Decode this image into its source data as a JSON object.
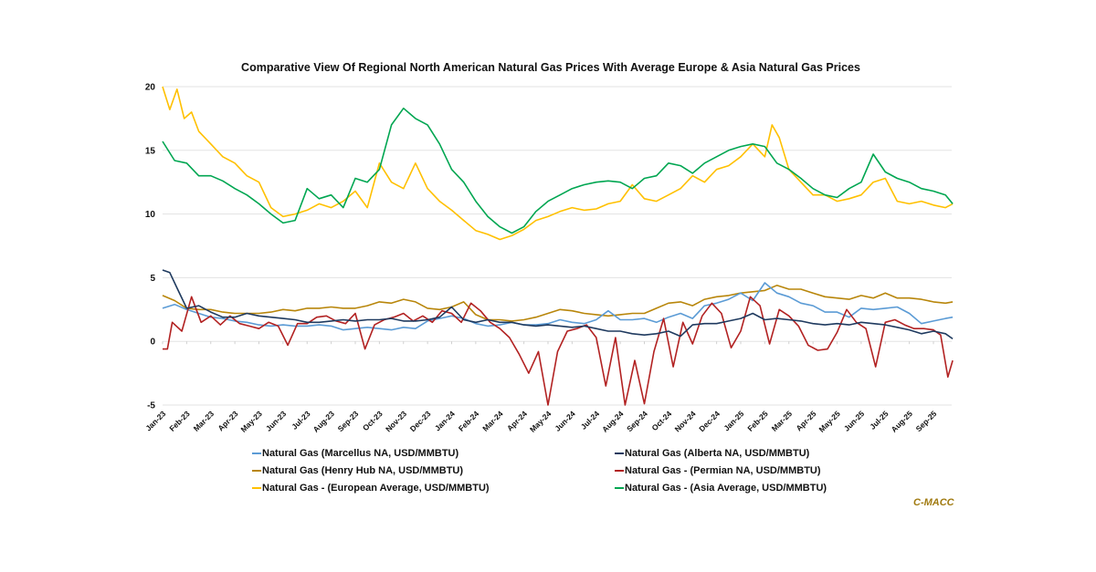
{
  "chart_data": {
    "type": "line",
    "title": "Comparative View Of Regional North American Natural Gas Prices With Average Europe & Asia Natural Gas Prices",
    "xlabel": "",
    "ylabel": "",
    "ylim": [
      -5,
      20
    ],
    "yticks": [
      20,
      15,
      10,
      5,
      0,
      -5
    ],
    "grid": true,
    "legend_position": "bottom",
    "x_tick_labels": [
      "Jan-23",
      "Feb-23",
      "Mar-23",
      "Apr-23",
      "May-23",
      "Jun-23",
      "Jul-23",
      "Aug-23",
      "Sep-23",
      "Oct-23",
      "Nov-23",
      "Dec-23",
      "Jan-24",
      "Feb-24",
      "Mar-24",
      "Apr-24",
      "May-24",
      "Jun-24",
      "Jul-24",
      "Aug-24",
      "Sep-24",
      "Oct-24",
      "Nov-24",
      "Dec-24",
      "Jan-25",
      "Feb-25",
      "Mar-25",
      "Apr-25",
      "May-25",
      "Jun-25",
      "Jul-25",
      "Aug-25",
      "Sep-25"
    ],
    "x_unit": "months since Jan-23",
    "x_range": [
      0,
      32.8
    ],
    "series": [
      {
        "name": "Natural Gas (Marcellus NA, USD/MMBTU)",
        "color": "#5b9bd5",
        "x": [
          0,
          0.5,
          1,
          1.5,
          2,
          2.5,
          3,
          3.5,
          4,
          4.5,
          5,
          5.5,
          6,
          6.5,
          7,
          7.5,
          8,
          8.5,
          9,
          9.5,
          10,
          10.5,
          11,
          11.5,
          12,
          12.5,
          13,
          13.5,
          14,
          14.5,
          15,
          15.5,
          16,
          16.5,
          17,
          17.5,
          18,
          18.5,
          19,
          19.5,
          20,
          20.5,
          21,
          21.5,
          22,
          22.5,
          23,
          23.5,
          24,
          24.5,
          25,
          25.5,
          26,
          26.5,
          27,
          27.5,
          28,
          28.5,
          29,
          29.5,
          30,
          30.5,
          31,
          31.5,
          32,
          32.5,
          32.8
        ],
        "values": [
          2.6,
          2.9,
          2.5,
          2.2,
          1.9,
          1.8,
          1.6,
          1.5,
          1.3,
          1.2,
          1.3,
          1.2,
          1.2,
          1.3,
          1.2,
          0.9,
          1.0,
          1.1,
          1.0,
          0.9,
          1.1,
          1.0,
          1.6,
          1.8,
          2.0,
          1.8,
          1.4,
          1.2,
          1.3,
          1.5,
          1.3,
          1.3,
          1.4,
          1.7,
          1.5,
          1.4,
          1.7,
          2.4,
          1.7,
          1.7,
          1.8,
          1.5,
          1.9,
          2.2,
          1.8,
          2.8,
          3.0,
          3.3,
          3.8,
          3.2,
          4.6,
          3.8,
          3.5,
          3.0,
          2.8,
          2.3,
          2.3,
          1.9,
          2.6,
          2.5,
          2.6,
          2.7,
          2.2,
          1.4,
          1.6,
          1.8,
          1.9
        ]
      },
      {
        "name": "Natural Gas (Alberta NA, USD/MMBTU)",
        "color": "#1f3a5f",
        "x": [
          0,
          0.3,
          0.6,
          1,
          1.5,
          2,
          2.5,
          3,
          3.5,
          4,
          4.5,
          5,
          5.5,
          6,
          6.5,
          7,
          7.5,
          8,
          8.5,
          9,
          9.5,
          10,
          10.5,
          11,
          11.5,
          12,
          12.5,
          13,
          13.5,
          14,
          14.5,
          15,
          15.5,
          16,
          16.5,
          17,
          17.5,
          18,
          18.5,
          19,
          19.5,
          20,
          20.5,
          21,
          21.5,
          22,
          22.5,
          23,
          23.5,
          24,
          24.5,
          25,
          25.5,
          26,
          26.5,
          27,
          27.5,
          28,
          28.5,
          29,
          29.5,
          30,
          30.5,
          31,
          31.5,
          32,
          32.5,
          32.8
        ],
        "values": [
          5.6,
          5.4,
          4.2,
          2.6,
          2.8,
          2.3,
          1.9,
          1.9,
          2.2,
          2.0,
          1.9,
          1.8,
          1.7,
          1.5,
          1.5,
          1.6,
          1.7,
          1.6,
          1.7,
          1.7,
          1.8,
          1.6,
          1.6,
          1.7,
          1.9,
          2.7,
          1.7,
          1.5,
          1.7,
          1.5,
          1.5,
          1.3,
          1.2,
          1.3,
          1.2,
          1.1,
          1.2,
          1.0,
          0.8,
          0.8,
          0.6,
          0.5,
          0.6,
          0.8,
          0.4,
          1.3,
          1.4,
          1.4,
          1.6,
          1.8,
          2.2,
          1.7,
          1.8,
          1.7,
          1.6,
          1.4,
          1.3,
          1.4,
          1.3,
          1.5,
          1.4,
          1.3,
          1.1,
          0.9,
          0.6,
          0.8,
          0.6,
          0.2
        ]
      },
      {
        "name": "Natural Gas (Henry Hub NA, USD/MMBTU)",
        "color": "#b8860b",
        "x": [
          0,
          0.5,
          1,
          1.5,
          2,
          2.5,
          3,
          3.5,
          4,
          4.5,
          5,
          5.5,
          6,
          6.5,
          7,
          7.5,
          8,
          8.5,
          9,
          9.5,
          10,
          10.5,
          11,
          11.5,
          12,
          12.5,
          13,
          13.5,
          14,
          14.5,
          15,
          15.5,
          16,
          16.5,
          17,
          17.5,
          18,
          18.5,
          19,
          19.5,
          20,
          20.5,
          21,
          21.5,
          22,
          22.5,
          23,
          23.5,
          24,
          24.5,
          25,
          25.5,
          26,
          26.5,
          27,
          27.5,
          28,
          28.5,
          29,
          29.5,
          30,
          30.5,
          31,
          31.5,
          32,
          32.5,
          32.8
        ],
        "values": [
          3.6,
          3.2,
          2.6,
          2.5,
          2.5,
          2.3,
          2.2,
          2.2,
          2.2,
          2.3,
          2.5,
          2.4,
          2.6,
          2.6,
          2.7,
          2.6,
          2.6,
          2.8,
          3.1,
          3.0,
          3.3,
          3.1,
          2.6,
          2.5,
          2.7,
          3.1,
          2.1,
          1.7,
          1.7,
          1.6,
          1.7,
          1.9,
          2.2,
          2.5,
          2.4,
          2.2,
          2.1,
          2.0,
          2.1,
          2.2,
          2.2,
          2.6,
          3.0,
          3.1,
          2.8,
          3.3,
          3.5,
          3.6,
          3.8,
          3.9,
          4.0,
          4.4,
          4.1,
          4.1,
          3.8,
          3.5,
          3.4,
          3.3,
          3.6,
          3.4,
          3.8,
          3.4,
          3.4,
          3.3,
          3.1,
          3.0,
          3.1
        ]
      },
      {
        "name": "Natural Gas - (Permian NA, USD/MMBTU)",
        "color": "#b22222",
        "x": [
          0,
          0.2,
          0.4,
          0.8,
          1.2,
          1.6,
          2,
          2.4,
          2.8,
          3.2,
          3.6,
          4,
          4.4,
          4.8,
          5.2,
          5.6,
          6,
          6.4,
          6.8,
          7.2,
          7.6,
          8,
          8.4,
          8.8,
          9.2,
          9.6,
          10,
          10.4,
          10.8,
          11.2,
          11.6,
          12,
          12.4,
          12.8,
          13.2,
          13.6,
          14,
          14.4,
          14.8,
          15.2,
          15.6,
          16,
          16.4,
          16.8,
          17.2,
          17.6,
          18,
          18.4,
          18.8,
          19.2,
          19.6,
          20,
          20.4,
          20.8,
          21.2,
          21.6,
          22,
          22.4,
          22.8,
          23.2,
          23.6,
          24,
          24.4,
          24.8,
          25.2,
          25.6,
          26,
          26.4,
          26.8,
          27.2,
          27.6,
          28,
          28.4,
          28.8,
          29.2,
          29.6,
          30,
          30.4,
          30.8,
          31.2,
          31.6,
          32,
          32.3,
          32.6,
          32.8
        ],
        "values": [
          -0.6,
          -0.6,
          1.5,
          0.8,
          3.5,
          1.5,
          2.0,
          1.3,
          2.0,
          1.4,
          1.2,
          1.0,
          1.5,
          1.2,
          -0.3,
          1.4,
          1.4,
          1.9,
          2.0,
          1.6,
          1.4,
          2.2,
          -0.6,
          1.3,
          1.7,
          1.9,
          2.2,
          1.6,
          2.0,
          1.5,
          2.4,
          2.2,
          1.5,
          3.0,
          2.4,
          1.5,
          1.0,
          0.3,
          -1.0,
          -2.5,
          -0.8,
          -5.0,
          -0.8,
          0.8,
          1.0,
          1.3,
          0.3,
          -3.5,
          0.3,
          -5.0,
          -1.5,
          -4.9,
          -0.8,
          1.8,
          -2.0,
          1.5,
          -0.2,
          2.0,
          3.0,
          2.2,
          -0.5,
          0.8,
          3.5,
          2.8,
          -0.2,
          2.5,
          2.0,
          1.2,
          -0.3,
          -0.7,
          -0.6,
          0.7,
          2.5,
          1.5,
          1.0,
          -2.0,
          1.5,
          1.7,
          1.3,
          1.0,
          1.0,
          0.9,
          0.5,
          -2.8,
          -1.5
        ]
      },
      {
        "name": "Natural Gas - (European Average, USD/MMBTU)",
        "color": "#ffc000",
        "x": [
          0,
          0.3,
          0.6,
          0.9,
          1.2,
          1.5,
          2,
          2.5,
          3,
          3.5,
          4,
          4.5,
          5,
          5.5,
          6,
          6.5,
          7,
          7.5,
          8,
          8.5,
          9,
          9.5,
          10,
          10.5,
          11,
          11.5,
          12,
          12.5,
          13,
          13.5,
          14,
          14.5,
          15,
          15.5,
          16,
          16.5,
          17,
          17.5,
          18,
          18.5,
          19,
          19.5,
          20,
          20.5,
          21,
          21.5,
          22,
          22.5,
          23,
          23.5,
          24,
          24.5,
          25,
          25.3,
          25.6,
          26,
          26.5,
          27,
          27.5,
          28,
          28.5,
          29,
          29.5,
          30,
          30.5,
          31,
          31.5,
          32,
          32.5,
          32.8
        ],
        "values": [
          20,
          18.2,
          19.8,
          17.5,
          18,
          16.5,
          15.5,
          14.5,
          14.0,
          13.0,
          12.5,
          10.5,
          9.8,
          10.0,
          10.3,
          10.8,
          10.5,
          11.0,
          11.8,
          10.5,
          14.0,
          12.5,
          12.0,
          14.0,
          12.0,
          11.0,
          10.3,
          9.5,
          8.7,
          8.4,
          8.0,
          8.3,
          8.8,
          9.5,
          9.8,
          10.2,
          10.5,
          10.3,
          10.4,
          10.8,
          11.0,
          12.3,
          11.2,
          11.0,
          11.5,
          12.0,
          13.0,
          12.5,
          13.5,
          13.8,
          14.5,
          15.5,
          14.5,
          17.0,
          16.0,
          13.5,
          12.5,
          11.5,
          11.5,
          11.0,
          11.2,
          11.5,
          12.5,
          12.8,
          11.0,
          10.8,
          11.0,
          10.7,
          10.5,
          10.8
        ]
      },
      {
        "name": "Natural Gas - (Asia Average, USD/MMBTU)",
        "color": "#00a651",
        "x": [
          0,
          0.5,
          1,
          1.5,
          2,
          2.5,
          3,
          3.5,
          4,
          4.5,
          5,
          5.5,
          6,
          6.5,
          7,
          7.5,
          8,
          8.5,
          9,
          9.5,
          10,
          10.5,
          11,
          11.5,
          12,
          12.5,
          13,
          13.5,
          14,
          14.5,
          15,
          15.5,
          16,
          16.5,
          17,
          17.5,
          18,
          18.5,
          19,
          19.5,
          20,
          20.5,
          21,
          21.5,
          22,
          22.5,
          23,
          23.5,
          24,
          24.5,
          25,
          25.5,
          26,
          26.5,
          27,
          27.5,
          28,
          28.5,
          29,
          29.5,
          30,
          30.5,
          31,
          31.5,
          32,
          32.5,
          32.8
        ],
        "values": [
          15.7,
          14.2,
          14.0,
          13.0,
          13.0,
          12.6,
          12.0,
          11.5,
          10.8,
          10.0,
          9.3,
          9.5,
          12.0,
          11.2,
          11.5,
          10.5,
          12.8,
          12.5,
          13.5,
          17.0,
          18.3,
          17.5,
          17.0,
          15.5,
          13.5,
          12.5,
          11.0,
          9.8,
          9.0,
          8.5,
          9.0,
          10.2,
          11.0,
          11.5,
          12.0,
          12.3,
          12.5,
          12.6,
          12.5,
          12.0,
          12.8,
          13.0,
          14.0,
          13.8,
          13.2,
          14.0,
          14.5,
          15.0,
          15.3,
          15.5,
          15.3,
          14.0,
          13.5,
          12.8,
          12.0,
          11.5,
          11.3,
          12.0,
          12.5,
          14.7,
          13.3,
          12.8,
          12.5,
          12.0,
          11.8,
          11.5,
          10.8
        ]
      }
    ]
  },
  "legend": {
    "items": [
      {
        "label": "Natural Gas (Marcellus NA, USD/MMBTU)",
        "color": "#5b9bd5"
      },
      {
        "label": "Natural Gas (Alberta NA, USD/MMBTU)",
        "color": "#1f3a5f"
      },
      {
        "label": "Natural Gas (Henry Hub NA, USD/MMBTU)",
        "color": "#b8860b"
      },
      {
        "label": "Natural Gas - (Permian NA, USD/MMBTU)",
        "color": "#b22222"
      },
      {
        "label": "Natural Gas - (European Average, USD/MMBTU)",
        "color": "#ffc000"
      },
      {
        "label": "Natural Gas - (Asia Average, USD/MMBTU)",
        "color": "#00a651"
      }
    ]
  },
  "brand": {
    "label": "C-MACC",
    "color": "#a07a10"
  }
}
